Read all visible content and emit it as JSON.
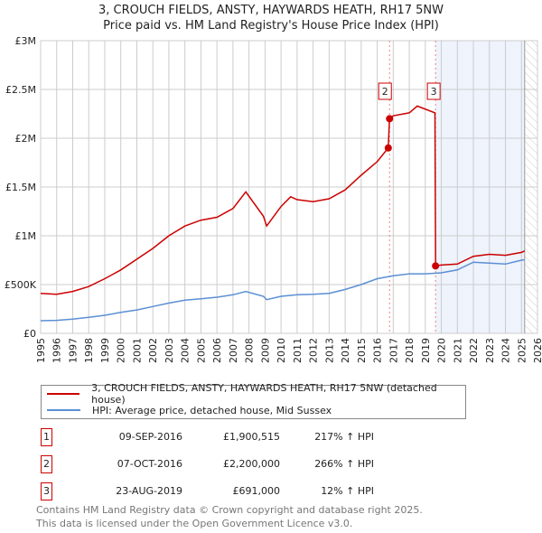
{
  "title": "3, CROUCH FIELDS, ANSTY, HAYWARDS HEATH, RH17 5NW",
  "subtitle": "Price paid vs. HM Land Registry's House Price Index (HPI)",
  "chart_data": {
    "type": "line",
    "xlim": [
      1995,
      2026
    ],
    "ylim": [
      0,
      3000000
    ],
    "x_ticks": [
      "1995",
      "1996",
      "1997",
      "1998",
      "1999",
      "2000",
      "2001",
      "2002",
      "2003",
      "2004",
      "2005",
      "2006",
      "2007",
      "2008",
      "2009",
      "2010",
      "2011",
      "2012",
      "2013",
      "2014",
      "2015",
      "2016",
      "2017",
      "2018",
      "2019",
      "2020",
      "2021",
      "2022",
      "2023",
      "2024",
      "2025",
      "2026"
    ],
    "y_ticks": [
      {
        "v": 0,
        "label": "£0"
      },
      {
        "v": 500000,
        "label": "£500K"
      },
      {
        "v": 1000000,
        "label": "£1M"
      },
      {
        "v": 1500000,
        "label": "£1.5M"
      },
      {
        "v": 2000000,
        "label": "£2M"
      },
      {
        "v": 2500000,
        "label": "£2.5M"
      },
      {
        "v": 3000000,
        "label": "£3M"
      }
    ],
    "grid": true,
    "shaded_from": 2019.64,
    "hatched_from": 2025.2,
    "series": [
      {
        "name": "3, CROUCH FIELDS, ANSTY, HAYWARDS HEATH, RH17 5NW (detached house)",
        "color": "#cc0000",
        "x": [
          1995,
          1996,
          1997,
          1998,
          1999,
          2000,
          2001,
          2002,
          2003,
          2004,
          2005,
          2006,
          2007,
          2007.8,
          2008.9,
          2009.1,
          2010,
          2010.6,
          2011,
          2012,
          2013,
          2014,
          2015,
          2016,
          2016.69,
          2016.77,
          2017,
          2018,
          2018.5,
          2019.6,
          2019.64,
          2020,
          2021,
          2022,
          2023,
          2024,
          2025,
          2025.2
        ],
        "y": [
          410000,
          400000,
          430000,
          480000,
          560000,
          650000,
          760000,
          870000,
          1000000,
          1100000,
          1160000,
          1190000,
          1280000,
          1450000,
          1200000,
          1100000,
          1300000,
          1400000,
          1370000,
          1350000,
          1380000,
          1470000,
          1620000,
          1760000,
          1900515,
          2200000,
          2230000,
          2260000,
          2330000,
          2260000,
          691000,
          700000,
          710000,
          790000,
          810000,
          800000,
          830000,
          845000
        ]
      },
      {
        "name": "HPI: Average price, detached house, Mid Sussex",
        "color": "#5b8fd4",
        "x": [
          1995,
          1996,
          1997,
          1998,
          1999,
          2000,
          2001,
          2002,
          2003,
          2004,
          2005,
          2006,
          2007,
          2007.8,
          2008.9,
          2009.1,
          2010,
          2011,
          2012,
          2013,
          2014,
          2015,
          2016,
          2017,
          2018,
          2019,
          2020,
          2021,
          2022,
          2023,
          2024,
          2025,
          2025.2
        ],
        "y": [
          130000,
          133000,
          145000,
          165000,
          185000,
          215000,
          240000,
          275000,
          310000,
          340000,
          355000,
          370000,
          395000,
          430000,
          380000,
          345000,
          380000,
          395000,
          400000,
          410000,
          450000,
          500000,
          560000,
          590000,
          610000,
          610000,
          620000,
          650000,
          730000,
          720000,
          710000,
          750000,
          755000
        ]
      }
    ],
    "sales": [
      {
        "label": "1",
        "x": 2016.69,
        "y": 1900515
      },
      {
        "label": "2",
        "x": 2016.77,
        "y": 2200000
      },
      {
        "label": "3",
        "x": 2019.64,
        "y": 691000
      }
    ]
  },
  "legend": [
    "3, CROUCH FIELDS, ANSTY, HAYWARDS HEATH, RH17 5NW (detached house)",
    "HPI: Average price, detached house, Mid Sussex"
  ],
  "table": [
    {
      "n": "1",
      "date": "09-SEP-2016",
      "price": "£1,900,515",
      "hpi": "217% ↑ HPI"
    },
    {
      "n": "2",
      "date": "07-OCT-2016",
      "price": "£2,200,000",
      "hpi": "266% ↑ HPI"
    },
    {
      "n": "3",
      "date": "23-AUG-2019",
      "price": "£691,000",
      "hpi": "12% ↑ HPI"
    }
  ],
  "footer": [
    "Contains HM Land Registry data © Crown copyright and database right 2025.",
    "This data is licensed under the Open Government Licence v3.0."
  ]
}
